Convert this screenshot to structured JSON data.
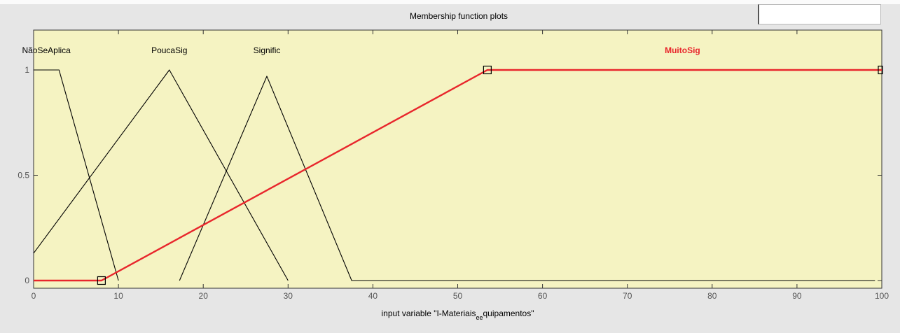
{
  "window": {
    "title": "Membership function plots"
  },
  "chart_data": {
    "type": "line",
    "title": "Membership function plots",
    "xlabel_main": "input variable \"I-Materiais",
    "xlabel_sub": "ee",
    "xlabel_tail": "quipamentos\"",
    "xlim": [
      0,
      100
    ],
    "ylim": [
      0,
      1
    ],
    "x_ticks": [
      0,
      10,
      20,
      30,
      40,
      50,
      60,
      70,
      80,
      90,
      100
    ],
    "y_ticks": [
      0,
      0.5,
      1
    ],
    "background_color": "#f5f3c2",
    "grid": false,
    "series": [
      {
        "name": "NãoSeAplica",
        "color": "#000000",
        "selected": false,
        "points": [
          [
            0,
            1
          ],
          [
            3,
            1
          ],
          [
            10,
            0
          ]
        ]
      },
      {
        "name": "PoucaSig",
        "color": "#000000",
        "selected": false,
        "points": [
          [
            0,
            0.13
          ],
          [
            16,
            1
          ],
          [
            30,
            0
          ]
        ]
      },
      {
        "name": "Signific",
        "color": "#000000",
        "selected": false,
        "points": [
          [
            17.2,
            0
          ],
          [
            27.5,
            0.97
          ],
          [
            37.5,
            0
          ],
          [
            99.2,
            0
          ]
        ]
      },
      {
        "name": "MuitoSig",
        "color": "#e8262c",
        "selected": true,
        "points": [
          [
            0,
            0
          ],
          [
            8,
            0
          ],
          [
            53.5,
            1
          ],
          [
            100,
            1
          ]
        ],
        "markers": [
          [
            8,
            0
          ],
          [
            53.5,
            1
          ],
          [
            100,
            1
          ]
        ]
      }
    ],
    "label_positions_data": [
      {
        "name": "NãoSeAplica",
        "x": 1.5
      },
      {
        "name": "PoucaSig",
        "x": 16
      },
      {
        "name": "Signific",
        "x": 27.5
      },
      {
        "name": "MuitoSig",
        "x": 76.5
      }
    ]
  }
}
